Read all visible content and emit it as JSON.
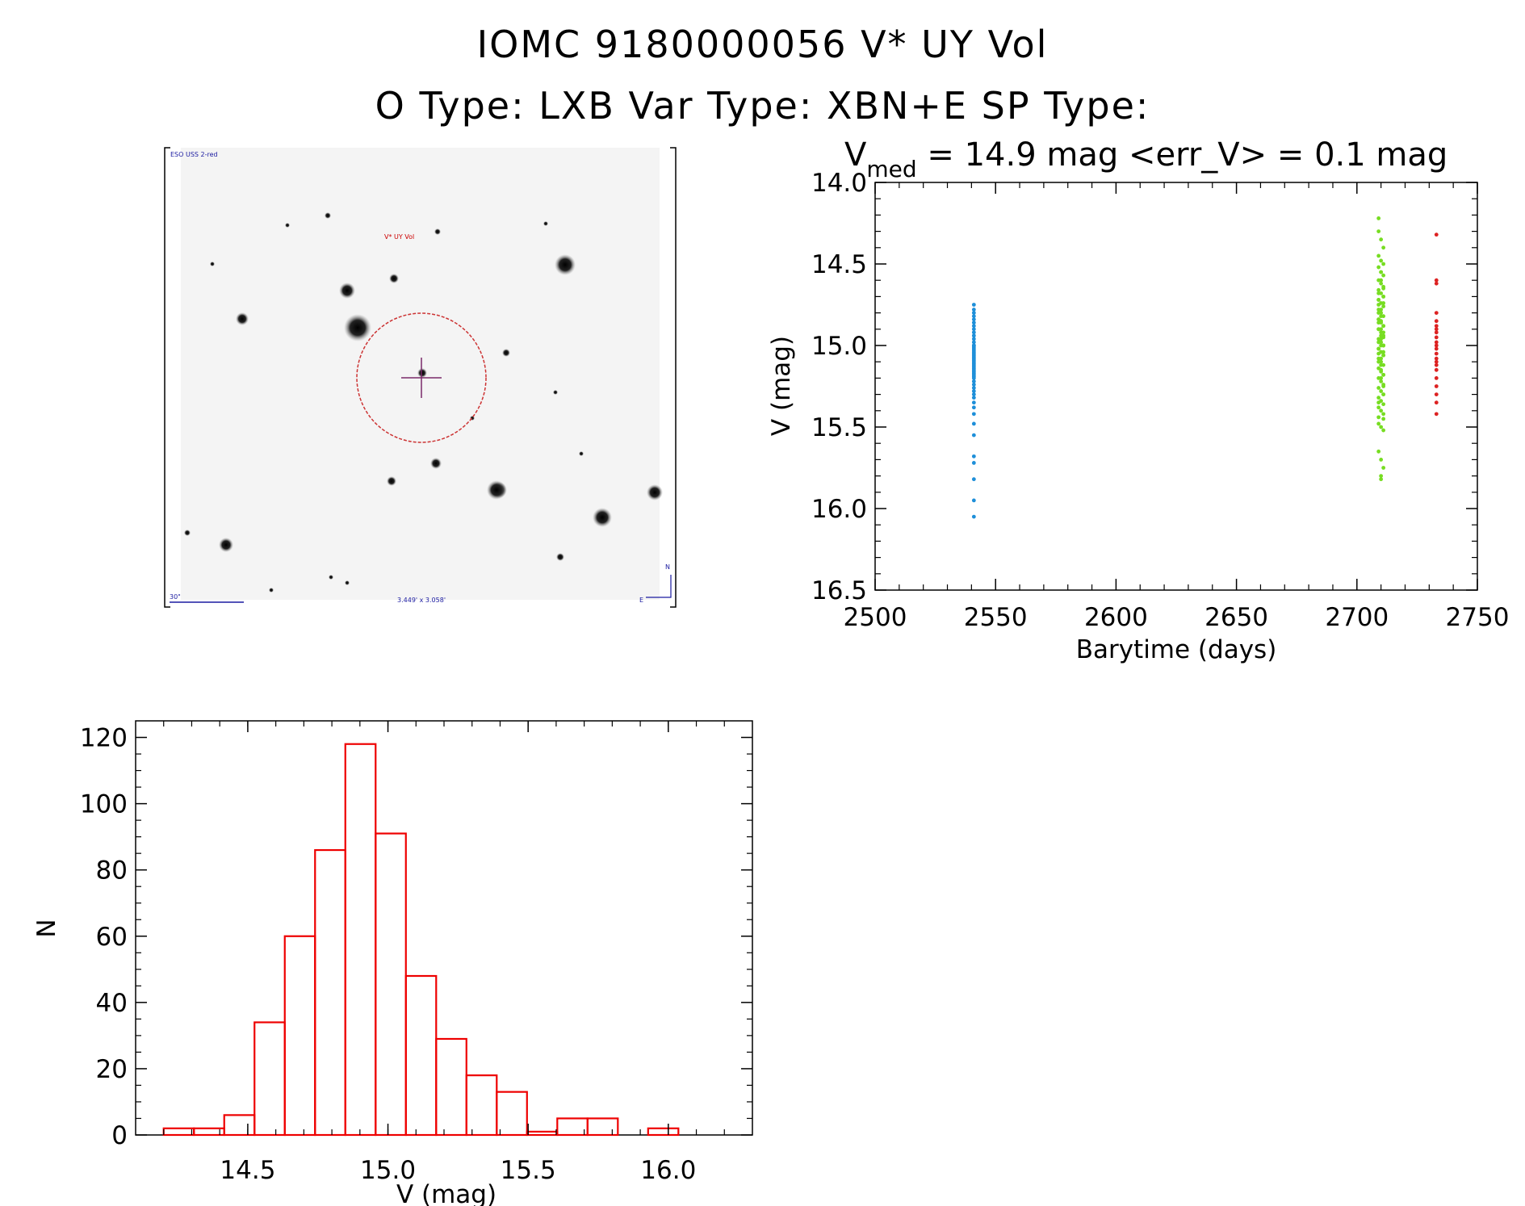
{
  "header": {
    "title_line1": "IOMC 9180000056    V* UY Vol",
    "title_line2": "O Type: LXB  Var Type: XBN+E  SP Type:"
  },
  "finder": {
    "survey_label": "ESO USS 2-red",
    "target_label": "V* UY Vol",
    "scale_label": "30\"",
    "size_label": "3.449' x 3.058'",
    "north_label": "N",
    "east_label": "E",
    "colors": {
      "circle": "#cc3333",
      "cross": "#7a2a6a",
      "label": "#cc0000",
      "annot": "#1a1aa0"
    }
  },
  "chart_data": [
    {
      "type": "scatter",
      "title_main": "V",
      "title_sub": "med",
      "title_rest": " = 14.9 mag <err_V> = 0.1 mag",
      "xlabel": "Barytime (days)",
      "ylabel": "V (mag)",
      "xlim": [
        2500,
        2750
      ],
      "ylim": [
        16.5,
        14.0
      ],
      "y_inverted": true,
      "xticks": [
        2500,
        2550,
        2600,
        2650,
        2700,
        2750
      ],
      "yticks": [
        14.0,
        14.5,
        15.0,
        15.5,
        16.0,
        16.5
      ],
      "xtick_labels": [
        "2500",
        "2550",
        "2600",
        "2650",
        "2700",
        "2750"
      ],
      "ytick_labels": [
        "14.0",
        "14.5",
        "15.0",
        "15.5",
        "16.0",
        "16.5"
      ],
      "series": [
        {
          "color": "#1e8fd9",
          "x": [
            2541,
            2541,
            2541,
            2541,
            2541,
            2541,
            2541,
            2541,
            2541,
            2541,
            2541,
            2541,
            2541,
            2541,
            2541,
            2541,
            2541,
            2541,
            2541,
            2541,
            2541,
            2541,
            2541,
            2541,
            2541,
            2541,
            2541,
            2541,
            2541,
            2541,
            2541,
            2541,
            2541,
            2541,
            2541,
            2541,
            2541,
            2541,
            2541,
            2541,
            2541,
            2541,
            2541,
            2541,
            2541,
            2541,
            2541,
            2541,
            2541,
            2541
          ],
          "y": [
            14.75,
            14.78,
            14.8,
            14.82,
            14.84,
            14.86,
            14.88,
            14.9,
            14.92,
            14.94,
            14.96,
            14.98,
            15.0,
            15.01,
            15.02,
            15.03,
            15.04,
            15.05,
            15.06,
            15.07,
            15.08,
            15.09,
            15.1,
            15.11,
            15.12,
            15.13,
            15.14,
            15.15,
            15.16,
            15.17,
            15.18,
            15.19,
            15.2,
            15.22,
            15.24,
            15.26,
            15.28,
            15.3,
            15.32,
            15.35,
            15.38,
            15.42,
            15.48,
            15.55,
            15.68,
            15.72,
            15.82,
            15.95,
            16.05,
            15.0
          ]
        },
        {
          "color": "#77dd22",
          "x": [
            2709,
            2709,
            2710,
            2711,
            2709,
            2710,
            2711,
            2709,
            2710,
            2711,
            2709,
            2710,
            2711,
            2709,
            2710,
            2711,
            2709,
            2710,
            2711,
            2709,
            2710,
            2711,
            2709,
            2710,
            2711,
            2709,
            2710,
            2711,
            2709,
            2710,
            2711,
            2709,
            2710,
            2711,
            2709,
            2710,
            2711,
            2709,
            2710,
            2711,
            2709,
            2710,
            2711,
            2709,
            2710,
            2711,
            2709,
            2710,
            2711,
            2709,
            2710,
            2711,
            2709,
            2710,
            2711,
            2709,
            2710,
            2711,
            2709,
            2710,
            2711,
            2709,
            2710,
            2711,
            2709,
            2710,
            2711,
            2709,
            2710,
            2711,
            2709,
            2710,
            2711,
            2709,
            2710,
            2711,
            2709,
            2710,
            2711,
            2709,
            2710,
            2711,
            2709,
            2710,
            2711,
            2709,
            2710,
            2711,
            2709,
            2710,
            2711,
            2709,
            2710,
            2711,
            2709,
            2710,
            2711,
            2710,
            2710,
            2711
          ],
          "y": [
            14.22,
            14.3,
            14.35,
            14.4,
            14.45,
            14.48,
            14.5,
            14.52,
            14.55,
            14.57,
            14.6,
            14.62,
            14.64,
            14.66,
            14.68,
            14.7,
            14.72,
            14.74,
            14.76,
            14.78,
            14.8,
            14.82,
            14.84,
            14.86,
            14.88,
            14.9,
            14.92,
            14.94,
            14.96,
            14.98,
            15.0,
            15.02,
            15.04,
            15.06,
            15.08,
            15.1,
            15.12,
            15.14,
            15.16,
            15.18,
            15.2,
            15.22,
            15.24,
            15.26,
            15.28,
            15.3,
            15.32,
            15.34,
            15.36,
            15.38,
            15.4,
            15.42,
            15.44,
            14.55,
            14.65,
            14.75,
            14.85,
            14.95,
            15.05,
            15.15,
            15.25,
            15.35,
            14.6,
            14.7,
            14.8,
            14.9,
            15.0,
            15.1,
            15.2,
            15.3,
            14.68,
            14.78,
            14.88,
            14.98,
            15.08,
            15.18,
            14.72,
            14.82,
            14.92,
            15.02,
            15.12,
            14.74,
            14.84,
            14.94,
            15.04,
            14.86,
            14.96,
            15.06,
            14.9,
            15.0,
            15.45,
            15.48,
            15.5,
            15.52,
            15.65,
            15.7,
            15.75,
            15.8,
            15.82,
            15.0
          ]
        },
        {
          "color": "#dd2222",
          "x": [
            2733,
            2733,
            2733,
            2733,
            2733,
            2733,
            2733,
            2733,
            2733,
            2733,
            2733,
            2733,
            2733,
            2733,
            2733,
            2733,
            2733,
            2733,
            2733,
            2733,
            2733,
            2733
          ],
          "y": [
            14.32,
            14.6,
            14.62,
            14.8,
            14.85,
            14.88,
            14.92,
            14.95,
            14.98,
            15.0,
            15.02,
            15.05,
            15.08,
            15.1,
            15.12,
            15.15,
            15.2,
            15.25,
            15.3,
            15.35,
            15.42,
            14.9
          ]
        }
      ]
    },
    {
      "type": "bar",
      "xlabel": "V (mag)",
      "ylabel": "N",
      "xlim": [
        14.1,
        16.3
      ],
      "ylim": [
        0,
        125
      ],
      "bin_width": 0.108,
      "bin_edges_start": 14.2,
      "values": [
        2,
        2,
        6,
        34,
        60,
        86,
        118,
        91,
        48,
        29,
        18,
        13,
        1,
        5,
        5,
        0,
        2
      ],
      "xticks": [
        14.5,
        15.0,
        15.5,
        16.0
      ],
      "xtick_labels": [
        "14.5",
        "15.0",
        "15.5",
        "16.0"
      ],
      "yticks": [
        0,
        20,
        40,
        60,
        80,
        100,
        120
      ],
      "ytick_labels": [
        "0",
        "20",
        "40",
        "60",
        "80",
        "100",
        "120"
      ],
      "color": "#ee0000"
    }
  ]
}
